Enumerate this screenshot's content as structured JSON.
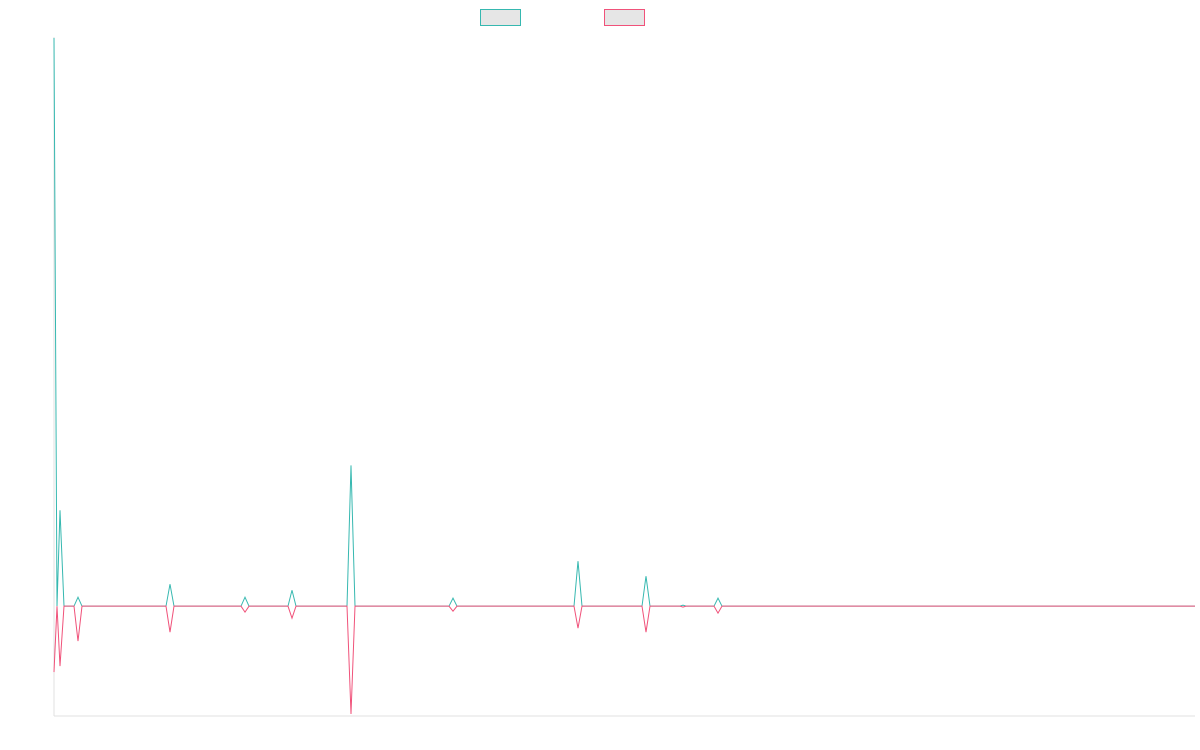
{
  "chart_data": {
    "type": "line",
    "x": [
      0,
      3,
      6,
      10,
      20,
      24,
      28,
      112,
      116,
      120,
      187,
      191,
      195,
      234,
      238,
      242,
      293,
      297,
      301,
      395,
      399,
      403,
      520,
      524,
      528,
      588,
      592,
      596,
      626,
      629,
      632,
      660,
      664,
      668,
      1141
    ],
    "series": [
      {
        "color": "#36b8b0",
        "values": [
          569,
          0,
          96,
          0,
          0,
          9,
          0,
          0,
          22,
          0,
          0,
          9,
          0,
          0,
          16,
          0,
          0,
          141,
          0,
          0,
          8,
          0,
          0,
          45,
          0,
          0,
          30,
          0,
          0,
          1,
          0,
          0,
          8,
          0,
          0
        ]
      },
      {
        "color": "#f0527a",
        "values": [
          -66,
          0,
          -60,
          0,
          0,
          -35,
          0,
          0,
          -26,
          0,
          0,
          -6,
          0,
          0,
          -12,
          0,
          0,
          -108,
          0,
          0,
          -5,
          0,
          0,
          -22,
          0,
          0,
          -26,
          0,
          0,
          -1,
          0,
          0,
          -7,
          0,
          0
        ]
      }
    ],
    "xlim": [
      0,
      1141
    ],
    "ylim": [
      -110,
      570
    ],
    "grid": false
  }
}
